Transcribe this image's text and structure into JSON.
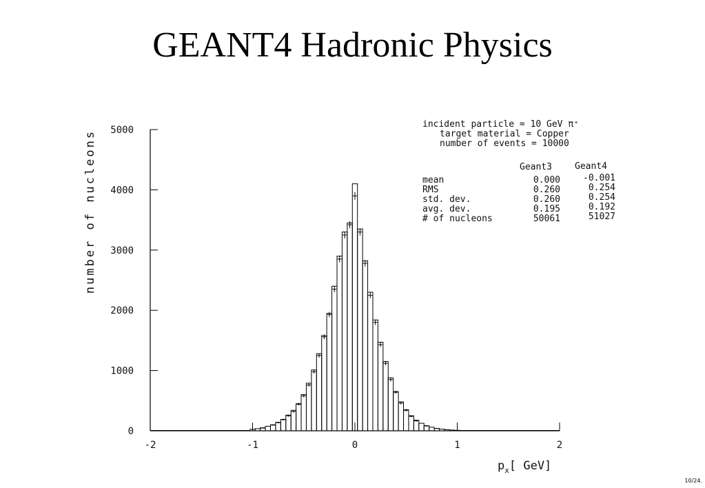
{
  "slide": {
    "title": "GEANT4 Hadronic Physics",
    "page_number": "10/24."
  },
  "chart_data": {
    "type": "bar",
    "title": "",
    "ylabel": "number of nucleons",
    "xlabel_main": "p",
    "xlabel_sub": "x",
    "xlabel_unit": "[ GeV]",
    "xlim": [
      -2,
      2
    ],
    "ylim": [
      0,
      5000
    ],
    "x_ticks": [
      -2,
      -1,
      0,
      1,
      2
    ],
    "x_tick_labels": [
      "-2",
      "-1",
      "0",
      "1",
      "2"
    ],
    "y_ticks": [
      0,
      1000,
      2000,
      3000,
      4000,
      5000
    ],
    "y_tick_labels": [
      "0",
      "1000",
      "2000",
      "3000",
      "4000",
      "5000"
    ],
    "bin_width": 0.05,
    "series": [
      {
        "name": "Geant4",
        "style": "histogram",
        "x": [
          -1.0,
          -0.95,
          -0.9,
          -0.85,
          -0.8,
          -0.75,
          -0.7,
          -0.65,
          -0.6,
          -0.55,
          -0.5,
          -0.45,
          -0.4,
          -0.35,
          -0.3,
          -0.25,
          -0.2,
          -0.15,
          -0.1,
          -0.05,
          0.0,
          0.05,
          0.1,
          0.15,
          0.2,
          0.25,
          0.3,
          0.35,
          0.4,
          0.45,
          0.5,
          0.55,
          0.6,
          0.65,
          0.7,
          0.75,
          0.8,
          0.85,
          0.9,
          0.95,
          1.0
        ],
        "values": [
          25,
          35,
          50,
          75,
          100,
          140,
          190,
          260,
          340,
          450,
          600,
          790,
          1010,
          1280,
          1580,
          1950,
          2400,
          2900,
          3300,
          3450,
          4100,
          3350,
          2820,
          2300,
          1840,
          1470,
          1150,
          880,
          650,
          480,
          350,
          250,
          175,
          125,
          85,
          60,
          40,
          28,
          18,
          12,
          8
        ]
      },
      {
        "name": "Geant3",
        "style": "error-cross",
        "x": [
          -0.9,
          -0.8,
          -0.75,
          -0.7,
          -0.65,
          -0.6,
          -0.55,
          -0.5,
          -0.45,
          -0.4,
          -0.35,
          -0.3,
          -0.25,
          -0.2,
          -0.15,
          -0.1,
          -0.05,
          0.0,
          0.05,
          0.1,
          0.15,
          0.2,
          0.25,
          0.3,
          0.35,
          0.4,
          0.45,
          0.5,
          0.55,
          0.6,
          0.7,
          0.8
        ],
        "values": [
          45,
          95,
          135,
          185,
          250,
          320,
          440,
          580,
          760,
          980,
          1250,
          1560,
          1930,
          2350,
          2850,
          3250,
          3420,
          3900,
          3300,
          2780,
          2250,
          1800,
          1430,
          1120,
          850,
          640,
          460,
          340,
          240,
          165,
          80,
          38
        ]
      }
    ],
    "annotation": {
      "line1": "incident particle = 10 GeV π⁺",
      "line2": "target material = Copper",
      "line3": "number of events = 10000",
      "col_headers": [
        "Geant3",
        "Geant4"
      ],
      "rows": [
        {
          "label": "mean",
          "geant3": "0.000",
          "geant4": "-0.001"
        },
        {
          "label": "RMS",
          "geant3": "0.260",
          "geant4": "0.254"
        },
        {
          "label": "std. dev.",
          "geant3": "0.260",
          "geant4": "0.254"
        },
        {
          "label": "avg. dev.",
          "geant3": "0.195",
          "geant4": "0.192"
        },
        {
          "label": "# of nucleons",
          "geant3": "50061",
          "geant4": "51027"
        }
      ]
    }
  }
}
